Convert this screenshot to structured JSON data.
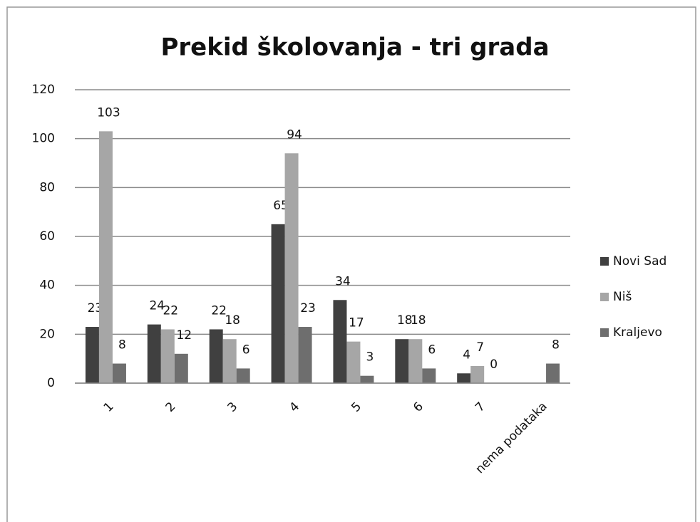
{
  "chart_data": {
    "type": "bar",
    "title": "Prekid školovanja - tri grada",
    "categories": [
      "1",
      "2",
      "3",
      "4",
      "5",
      "6",
      "7",
      "nema podataka"
    ],
    "series": [
      {
        "name": "Novi Sad",
        "color": "#404040",
        "values": [
          23,
          24,
          22,
          65,
          34,
          18,
          4,
          null
        ]
      },
      {
        "name": "Niš",
        "color": "#a6a6a6",
        "values": [
          103,
          22,
          18,
          94,
          17,
          18,
          7,
          null
        ]
      },
      {
        "name": "Kraljevo",
        "color": "#6e6e6e",
        "values": [
          8,
          12,
          6,
          23,
          3,
          6,
          0,
          8
        ]
      }
    ],
    "ylim": [
      0,
      120
    ],
    "yticks": [
      0,
      20,
      40,
      60,
      80,
      100,
      120
    ],
    "grid": true,
    "legend": "right"
  }
}
